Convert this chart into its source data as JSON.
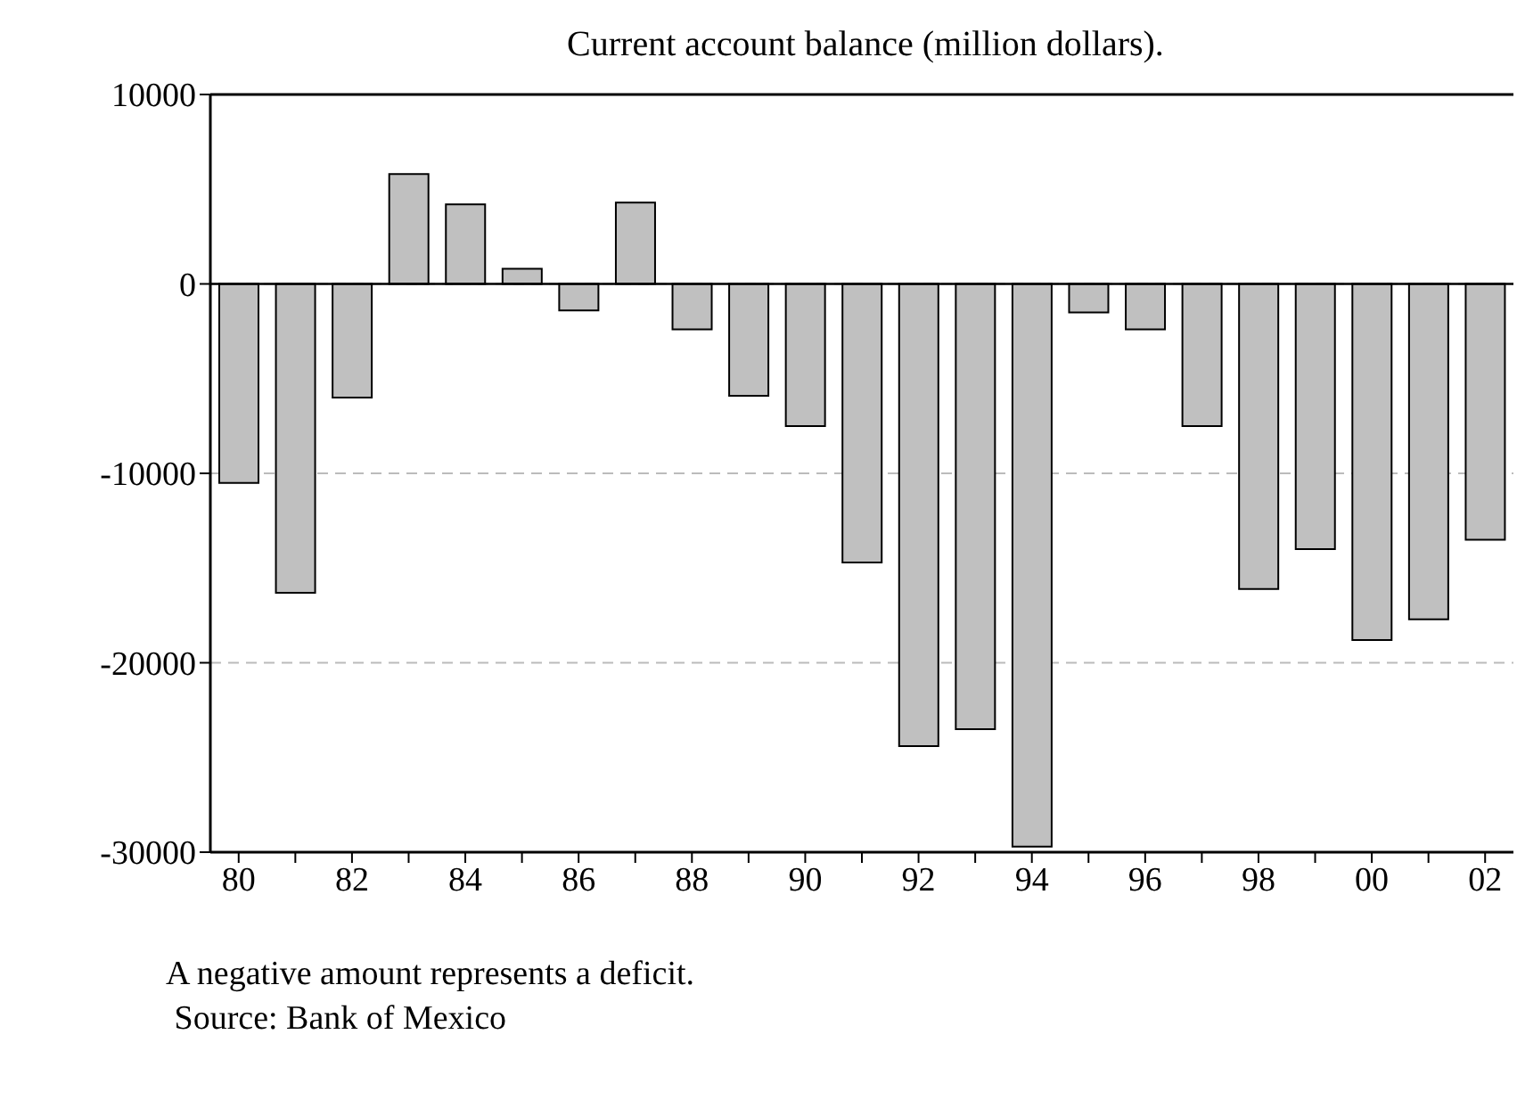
{
  "chart_data": {
    "type": "bar",
    "title": "Current account balance (million dollars).",
    "categories": [
      "80",
      null,
      "82",
      null,
      "84",
      null,
      "86",
      null,
      "88",
      null,
      "90",
      null,
      "92",
      null,
      "94",
      null,
      "96",
      null,
      "98",
      null,
      "00",
      null,
      "02"
    ],
    "values": [
      -10500,
      -16300,
      -6000,
      5800,
      4200,
      800,
      -1400,
      4300,
      -2400,
      -5900,
      -7500,
      -14700,
      -24400,
      -23500,
      -29700,
      -1500,
      -2400,
      -7500,
      -16100,
      -14000,
      -18800,
      -17700,
      -13500
    ],
    "color": "#c0c0c0",
    "ylim": [
      -30000,
      10000
    ],
    "yticks": [
      -30000,
      -20000,
      -10000,
      0,
      10000
    ],
    "grid": "y",
    "ref_lines": [
      {
        "axis": "y",
        "value": 0,
        "color": "#000000"
      }
    ],
    "annotations": [
      "A negative amount represents a deficit.",
      " Source: Bank of Mexico"
    ]
  }
}
